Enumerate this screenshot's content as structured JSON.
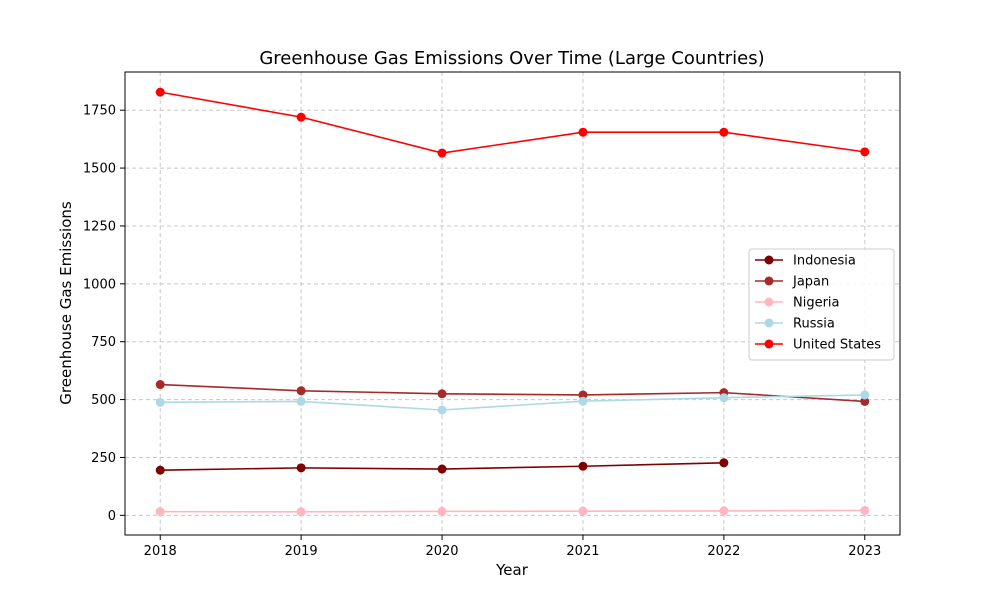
{
  "chart_data": {
    "type": "line",
    "title": "Greenhouse Gas Emissions Over Time (Large Countries)",
    "xlabel": "Year",
    "ylabel": "Greenhouse Gas Emissions",
    "x": [
      2018,
      2019,
      2020,
      2021,
      2022,
      2023
    ],
    "x_tick_labels": [
      "2018",
      "2019",
      "2020",
      "2021",
      "2022",
      "2023"
    ],
    "xlim": [
      2017.75,
      2023.25
    ],
    "ylim": [
      -85,
      1915
    ],
    "y_ticks": [
      0,
      250,
      500,
      750,
      1000,
      1250,
      1500,
      1750
    ],
    "y_tick_labels": [
      "0",
      "250",
      "500",
      "750",
      "1000",
      "1250",
      "1500",
      "1750"
    ],
    "grid": true,
    "legend_position": "center-right",
    "series": [
      {
        "name": "Indonesia",
        "color": "#800000",
        "values": [
          195,
          205,
          200,
          212,
          227,
          null
        ]
      },
      {
        "name": "Japan",
        "color": "#a52a2a",
        "values": [
          565,
          538,
          525,
          520,
          530,
          492
        ]
      },
      {
        "name": "Nigeria",
        "color": "#ffb6c1",
        "values": [
          16,
          15,
          17,
          18,
          19,
          21
        ]
      },
      {
        "name": "Russia",
        "color": "#add8e6",
        "values": [
          488,
          492,
          455,
          493,
          508,
          520
        ]
      },
      {
        "name": "United States",
        "color": "#ff0000",
        "values": [
          1828,
          1720,
          1565,
          1655,
          1655,
          1570
        ]
      }
    ]
  }
}
